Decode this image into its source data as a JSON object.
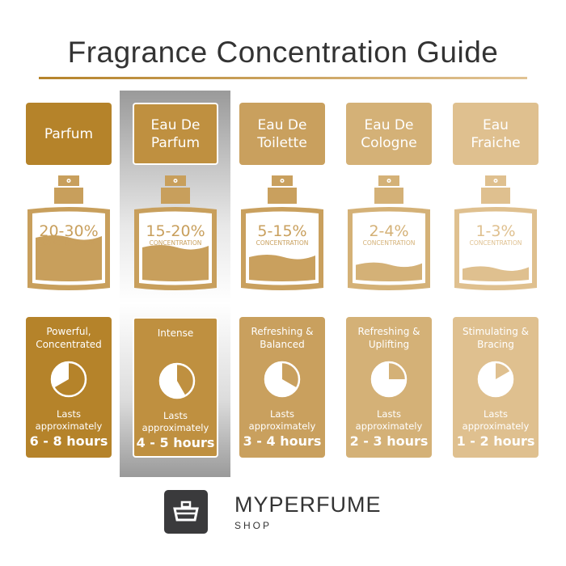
{
  "title": "Fragrance Concentration Guide",
  "concentration_label": "CONCENTRATION",
  "lasts_label": "Lasts\napproximately",
  "columns": [
    {
      "name": "Parfum",
      "percent": "20-30%",
      "description": "Powerful,\nConcentrated",
      "duration": "6 - 8 hours",
      "max_hours": 8,
      "fill_level": 0.55,
      "color": "#b5832a",
      "bottle_color": "#c89f5c",
      "highlighted": false
    },
    {
      "name": "Eau De\nParfum",
      "percent": "15-20%",
      "description": "Intense",
      "duration": "4 - 5 hours",
      "max_hours": 5,
      "fill_level": 0.4,
      "color": "#bf9040",
      "bottle_color": "#c89f5c",
      "highlighted": true
    },
    {
      "name": "Eau De\nToilette",
      "percent": "5-15%",
      "description": "Refreshing &\nBalanced",
      "duration": "3 - 4 hours",
      "max_hours": 4,
      "fill_level": 0.25,
      "color": "#c9a05e",
      "bottle_color": "#c9a05e",
      "highlighted": false
    },
    {
      "name": "Eau De\nCologne",
      "percent": "2-4%",
      "description": "Refreshing &\nUplifting",
      "duration": "2 - 3 hours",
      "max_hours": 3,
      "fill_level": 0.13,
      "color": "#d4b177",
      "bottle_color": "#d4b177",
      "highlighted": false
    },
    {
      "name": "Eau\nFraiche",
      "percent": "1-3%",
      "description": "Stimulating &\nBracing",
      "duration": "1 - 2 hours",
      "max_hours": 2,
      "fill_level": 0.07,
      "color": "#dfc08f",
      "bottle_color": "#dfc08f",
      "highlighted": false
    }
  ],
  "brand": {
    "name": "MYPERFUME",
    "sub": "SHOP"
  }
}
